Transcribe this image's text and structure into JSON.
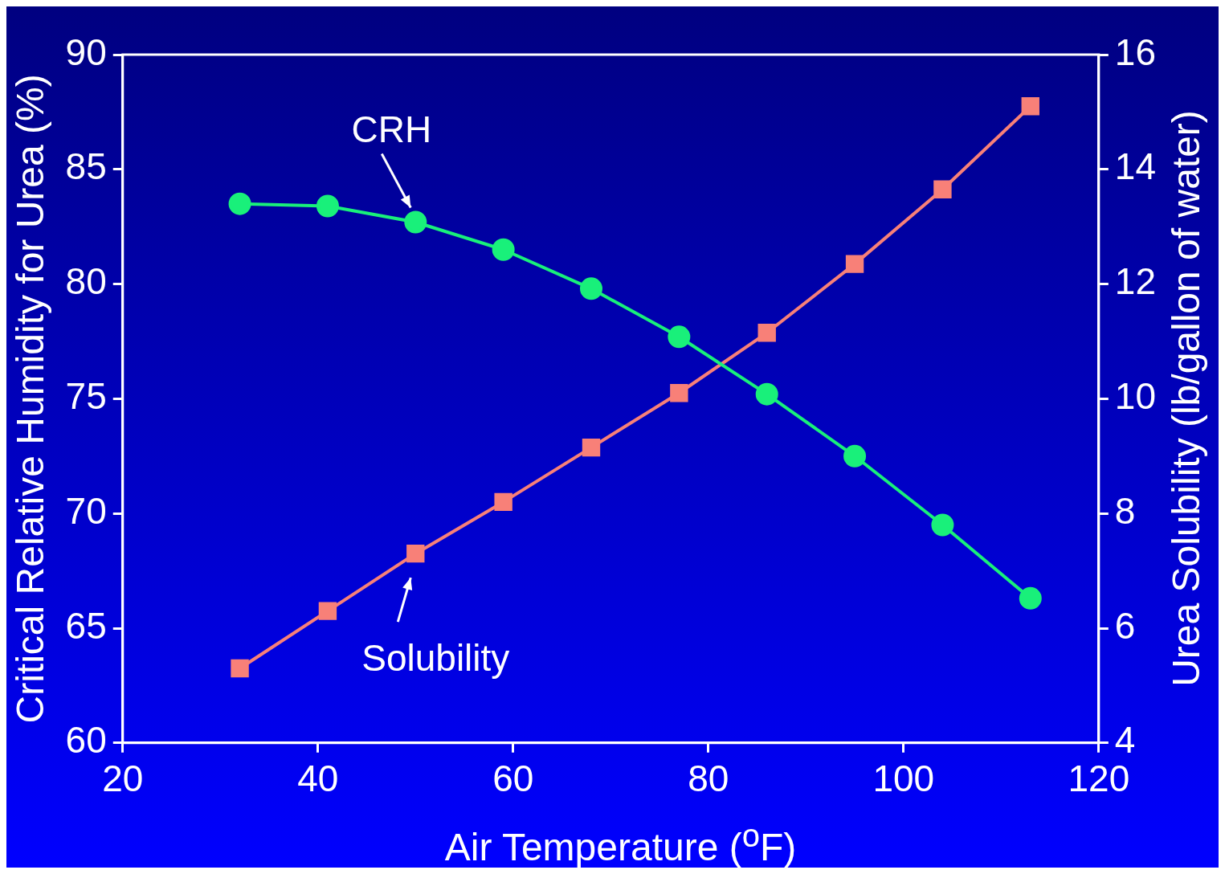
{
  "chart_data": {
    "type": "line",
    "xlabel": "Air Temperature ($^{o}$F)",
    "ylabel": "Critical Relative Humidity for Urea (%)",
    "y2label": "Urea Solubility (lb/gallon of water)",
    "x": [
      32,
      41,
      50,
      59,
      68,
      77,
      86,
      95,
      104,
      113
    ],
    "series": [
      {
        "name": "CRH",
        "color": "#19f07a",
        "marker": "circle",
        "values": [
          83.5,
          83.4,
          82.7,
          81.5,
          79.8,
          77.7,
          75.2,
          72.5,
          69.5,
          66.3
        ]
      },
      {
        "name": "Solubility",
        "color": "#f88078",
        "marker": "square",
        "axis": "y2",
        "values": [
          5.3,
          6.3,
          7.3,
          8.2,
          9.15,
          10.1,
          11.15,
          12.35,
          13.65,
          15.1
        ]
      }
    ],
    "xlim": [
      20,
      120
    ],
    "xticks": [
      20,
      40,
      60,
      80,
      100,
      120
    ],
    "ylim": [
      60,
      90
    ],
    "yticks": [
      60,
      65,
      70,
      75,
      80,
      85,
      90
    ],
    "y2lim": [
      4,
      16
    ],
    "y2ticks": [
      4,
      6,
      8,
      10,
      12,
      14,
      16
    ],
    "grid": false,
    "legend": false
  }
}
